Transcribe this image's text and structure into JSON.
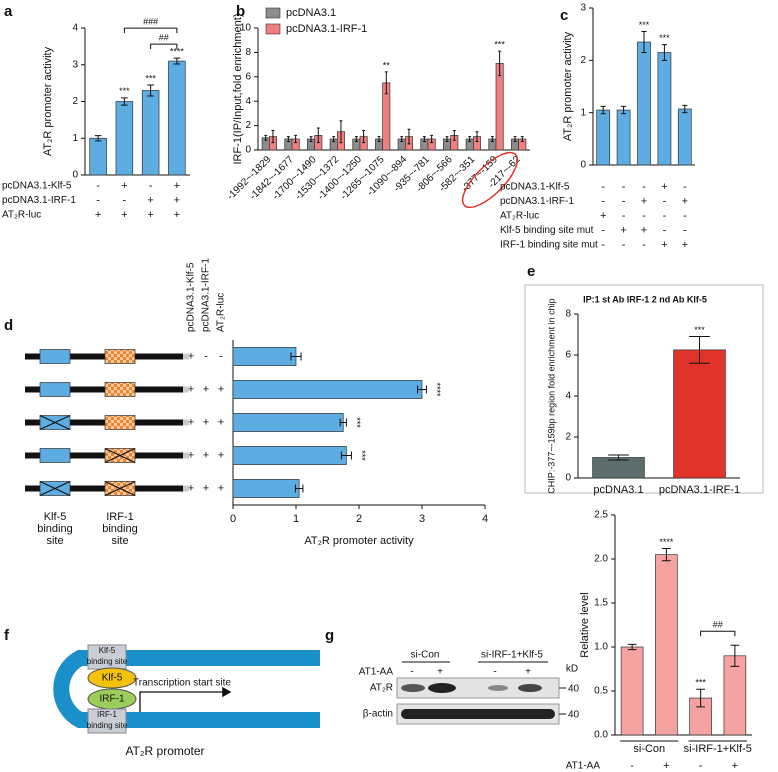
{
  "panel_labels": [
    "a",
    "b",
    "c",
    "d",
    "e",
    "f",
    "g"
  ],
  "chart_data": [
    {
      "type": "bar",
      "ylabel": "AT₂R promoter activity",
      "values": [
        1,
        2,
        2.3,
        3.1
      ],
      "errors": [
        0.07,
        0.1,
        0.15,
        0.08
      ],
      "color": "#5dade2",
      "ylim": [
        0,
        4
      ],
      "yticks": [
        0,
        1,
        2,
        3,
        4
      ],
      "significance": [
        null,
        "***",
        "***",
        "****"
      ],
      "brackets": [
        {
          "between": [
            1,
            3
          ],
          "label": "###"
        },
        {
          "between": [
            2,
            3
          ],
          "label": "##"
        }
      ],
      "conditions": [
        {
          "name": "pcDNA3.1-Klf-5",
          "values": [
            "-",
            "+",
            "-",
            "+"
          ]
        },
        {
          "name": "pcDNA3.1-IRF-1",
          "values": [
            "-",
            "-",
            "+",
            "+"
          ]
        },
        {
          "name": "AT₂R-luc",
          "values": [
            "+",
            "+",
            "+",
            "+"
          ]
        }
      ]
    },
    {
      "type": "bar",
      "ylabel": "IRF-1(IP/Input,fold enrichment)",
      "categories": [
        "-1992~-1829",
        "-1842~-1677",
        "-1700~-1490",
        "-1530~-1372",
        "-1400~-1250",
        "-1265~-1075",
        "-1090~-894",
        "-935~-781",
        "-806~-566",
        "-582~-351",
        "-377~-159",
        "-217~-62"
      ],
      "series": [
        {
          "name": "pcDNA3.1",
          "color": "#8c8c8c",
          "values": [
            1,
            0.9,
            0.9,
            0.9,
            0.9,
            0.9,
            0.9,
            0.9,
            0.9,
            0.9,
            0.9,
            0.9
          ],
          "errors": [
            0.2,
            0.2,
            0.2,
            0.2,
            0.2,
            0.2,
            0.2,
            0.2,
            0.2,
            0.2,
            0.2,
            0.2
          ]
        },
        {
          "name": "pcDNA3.1-IRF-1",
          "color": "#f08080",
          "values": [
            1.1,
            0.9,
            1.2,
            1.5,
            1.1,
            5.5,
            1.1,
            0.9,
            1.2,
            1.1,
            7.1,
            0.9
          ],
          "errors": [
            0.5,
            0.3,
            0.6,
            0.9,
            0.5,
            0.9,
            0.6,
            0.3,
            0.4,
            0.4,
            1,
            0.2
          ],
          "significance": [
            null,
            null,
            null,
            null,
            null,
            "**",
            null,
            null,
            null,
            null,
            "***",
            null
          ]
        }
      ],
      "ylim": [
        0,
        10
      ],
      "yticks": [
        0,
        2,
        4,
        6,
        8,
        10
      ],
      "legend": "top-left"
    },
    {
      "type": "bar",
      "ylabel": "AT₂R promoter activity",
      "values": [
        1.05,
        1.05,
        2.35,
        2.15,
        1.07
      ],
      "errors": [
        0.07,
        0.07,
        0.2,
        0.15,
        0.07
      ],
      "color": "#5dade2",
      "ylim": [
        0,
        3
      ],
      "yticks": [
        0,
        1,
        2,
        3
      ],
      "significance": [
        null,
        null,
        "***",
        "***",
        null
      ],
      "conditions": [
        {
          "name": "pcDNA3.1-Klf-5",
          "values": [
            "-",
            "-",
            "-",
            "+",
            "-"
          ]
        },
        {
          "name": "pcDNA3.1-IRF-1",
          "values": [
            "-",
            "-",
            "+",
            "-",
            "+"
          ]
        },
        {
          "name": "AT₂R-luc",
          "values": [
            "+",
            "-",
            "-",
            "-",
            "-"
          ]
        },
        {
          "name": "Klf-5 binding site mut",
          "values": [
            "-",
            "+",
            "+",
            "-",
            "-"
          ]
        },
        {
          "name": "IRF-1 binding site mut",
          "values": [
            "-",
            "-",
            "-",
            "+",
            "+"
          ]
        }
      ]
    },
    {
      "type": "hbar",
      "xlabel": "AT₂R promoter activity",
      "values": [
        1,
        3,
        1.75,
        1.8,
        1.05
      ],
      "errors": [
        0.08,
        0.07,
        0.05,
        0.08,
        0.06
      ],
      "color": "#5dade2",
      "xlim": [
        0,
        4
      ],
      "xticks": [
        0,
        1,
        2,
        3,
        4
      ],
      "significance": [
        null,
        "****",
        "***",
        "***",
        null
      ],
      "conditions": [
        {
          "name": "pcDNA3.1-Klf-5",
          "values": [
            "+",
            "+",
            "+",
            "+",
            "+"
          ]
        },
        {
          "name": "pcDNA3.1-IRF-1",
          "values": [
            "-",
            "+",
            "+",
            "+",
            "+"
          ]
        },
        {
          "name": "AT₂R-luc",
          "values": [
            "-",
            "+",
            "+",
            "+",
            "+"
          ]
        }
      ],
      "site_labels": [
        [
          "Klf-5",
          "binding",
          "site"
        ],
        [
          "IRF-1",
          "binding",
          "site"
        ]
      ]
    },
    {
      "type": "bar",
      "title": "IP:1 st Ab IRF-1 2 nd Ab Klf-5",
      "ylabel": "CHIP:-377~-159bp region fold enrichment in chip",
      "categories": [
        "pcDNA3.1",
        "pcDNA3.1-IRF-1"
      ],
      "values": [
        1,
        6.25
      ],
      "errors": [
        0.12,
        0.65
      ],
      "colors": [
        "#5d6d6e",
        "#e0332a"
      ],
      "significance": [
        null,
        "***"
      ],
      "ylim": [
        0,
        8
      ],
      "yticks": [
        0,
        2,
        4,
        6,
        8
      ]
    },
    {
      "type": "bar",
      "ylabel": "Relative level",
      "values": [
        1,
        2.05,
        0.42,
        0.9
      ],
      "errors": [
        0.03,
        0.07,
        0.1,
        0.12
      ],
      "color": "#f4a3a0",
      "significance": [
        null,
        "****",
        "***",
        null
      ],
      "brackets": [
        {
          "between": [
            2,
            3
          ],
          "label": "##"
        }
      ],
      "group_labels": [
        "si-Con",
        "si-IRF-1+Klf-5"
      ],
      "conditions": [
        {
          "name": "AT1-AA",
          "values": [
            "-",
            "+",
            "-",
            "+"
          ]
        }
      ],
      "ylim": [
        0,
        2.5
      ],
      "yticks": [
        {
          "value": 0,
          "label": "0.0"
        },
        0.5,
        {
          "value": 1,
          "label": "1.0"
        },
        1.5,
        {
          "value": 2,
          "label": "2.0"
        },
        2.5
      ]
    }
  ],
  "diagram_f": {
    "klf5_site": [
      "Klf-5",
      "binding site"
    ],
    "klf5": "Klf-5",
    "irf1": "IRF-1",
    "irf1_site": [
      "IRF-1",
      "binding site"
    ],
    "tss": "Transcription start site",
    "caption": "AT₂R promoter"
  },
  "blot_g": {
    "groups": [
      "si-Con",
      "si-IRF-1+Klf-5"
    ],
    "unit": "kD",
    "treatment": "AT1-AA",
    "signs": [
      "-",
      "+",
      "-",
      "+"
    ],
    "rows": [
      {
        "name": "AT₂R",
        "marker": 40
      },
      {
        "name": "β-actin",
        "marker": 40
      }
    ]
  }
}
